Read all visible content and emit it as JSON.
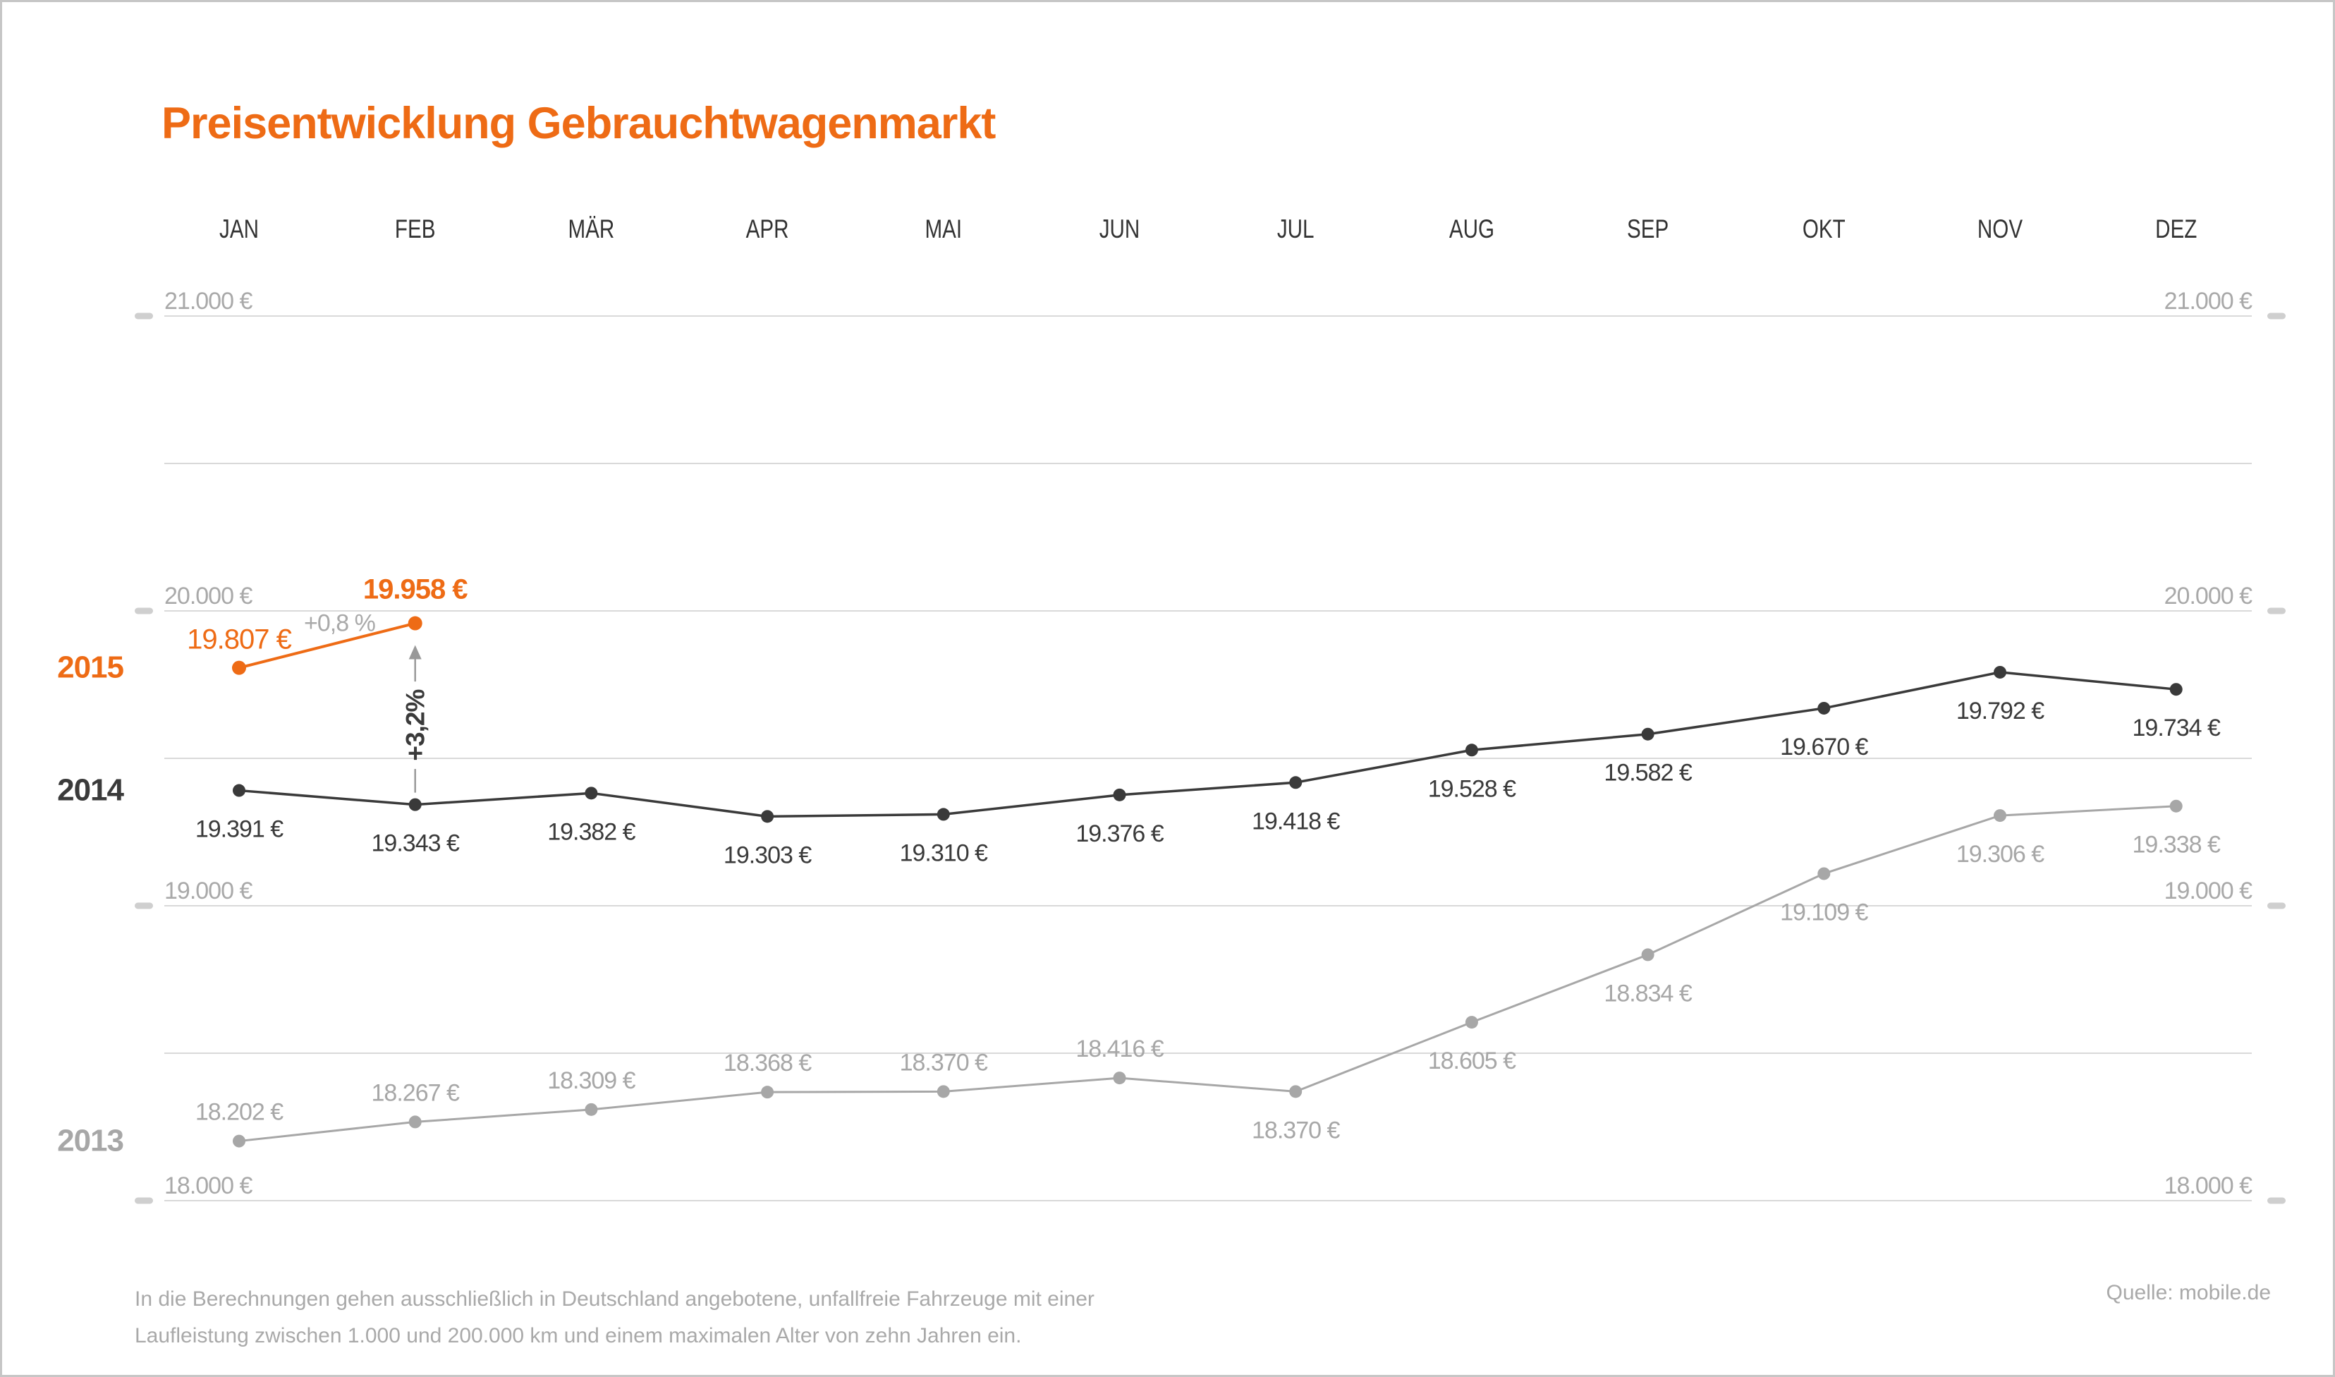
{
  "title": "Preisentwicklung Gebrauchtwagenmarkt",
  "footer": {
    "line1": "In die Berechnungen gehen ausschließlich in Deutschland angebotene, unfallfreie Fahrzeuge mit einer",
    "line2": "Laufleistung zwischen 1.000 und 200.000 km und einem maximalen Alter von zehn Jahren ein.",
    "source": "Quelle: mobile.de"
  },
  "colors": {
    "orange": "#EE6B15",
    "dark": "#3A3A3A",
    "gray": "#A7A7A7",
    "gridline": "#D9D9D9",
    "grid_label": "#A9A9A9",
    "tick": "#CFCFCF",
    "month_label": "#333333",
    "footer_text": "#A9A9A9",
    "canvas_border": "#C6C6C6",
    "annotation_arrow": "#999999"
  },
  "chart_data": {
    "type": "line",
    "title": "Preisentwicklung Gebrauchtwagenmarkt",
    "xlabel": "",
    "ylabel": "",
    "categories": [
      "JAN",
      "FEB",
      "MÄR",
      "APR",
      "MAI",
      "JUN",
      "JUL",
      "AUG",
      "SEP",
      "OKT",
      "NOV",
      "DEZ"
    ],
    "y_axis": {
      "unit": "€",
      "labeled_ticks": [
        {
          "value": 21000,
          "label": "21.000 €"
        },
        {
          "value": 20000,
          "label": "20.000 €"
        },
        {
          "value": 19000,
          "label": "19.000 €"
        },
        {
          "value": 18000,
          "label": "18.000 €"
        }
      ],
      "minor_gridline_values": [
        20500,
        19500,
        18500
      ],
      "gridline_step": 500,
      "ylim": [
        18000,
        21000
      ],
      "grid": true,
      "labels_both_sides": true
    },
    "legend_position": "left-of-series-start",
    "series": [
      {
        "name": "2013",
        "color_key": "gray",
        "points": [
          {
            "month": "JAN",
            "value": 18202,
            "label": "18.202 €",
            "label_pos": "above"
          },
          {
            "month": "FEB",
            "value": 18267,
            "label": "18.267 €",
            "label_pos": "above"
          },
          {
            "month": "MÄR",
            "value": 18309,
            "label": "18.309 €",
            "label_pos": "above"
          },
          {
            "month": "APR",
            "value": 18368,
            "label": "18.368 €",
            "label_pos": "above"
          },
          {
            "month": "MAI",
            "value": 18370,
            "label": "18.370 €",
            "label_pos": "above"
          },
          {
            "month": "JUN",
            "value": 18416,
            "label": "18.416 €",
            "label_pos": "above"
          },
          {
            "month": "JUL",
            "value": 18370,
            "label": "18.370 €",
            "label_pos": "below"
          },
          {
            "month": "AUG",
            "value": 18605,
            "label": "18.605 €",
            "label_pos": "below"
          },
          {
            "month": "SEP",
            "value": 18834,
            "label": "18.834 €",
            "label_pos": "below"
          },
          {
            "month": "OKT",
            "value": 19109,
            "label": "19.109 €",
            "label_pos": "below"
          },
          {
            "month": "NOV",
            "value": 19306,
            "label": "19.306 €",
            "label_pos": "below"
          },
          {
            "month": "DEZ",
            "value": 19338,
            "label": "19.338 €",
            "label_pos": "below"
          }
        ]
      },
      {
        "name": "2014",
        "color_key": "dark",
        "points": [
          {
            "month": "JAN",
            "value": 19391,
            "label": "19.391 €",
            "label_pos": "below"
          },
          {
            "month": "FEB",
            "value": 19343,
            "label": "19.343 €",
            "label_pos": "below"
          },
          {
            "month": "MÄR",
            "value": 19382,
            "label": "19.382 €",
            "label_pos": "below"
          },
          {
            "month": "APR",
            "value": 19303,
            "label": "19.303 €",
            "label_pos": "below"
          },
          {
            "month": "MAI",
            "value": 19310,
            "label": "19.310 €",
            "label_pos": "below"
          },
          {
            "month": "JUN",
            "value": 19376,
            "label": "19.376 €",
            "label_pos": "below"
          },
          {
            "month": "JUL",
            "value": 19418,
            "label": "19.418 €",
            "label_pos": "below"
          },
          {
            "month": "AUG",
            "value": 19528,
            "label": "19.528 €",
            "label_pos": "below"
          },
          {
            "month": "SEP",
            "value": 19582,
            "label": "19.582 €",
            "label_pos": "below"
          },
          {
            "month": "OKT",
            "value": 19670,
            "label": "19.670 €",
            "label_pos": "below"
          },
          {
            "month": "NOV",
            "value": 19792,
            "label": "19.792 €",
            "label_pos": "below"
          },
          {
            "month": "DEZ",
            "value": 19734,
            "label": "19.734 €",
            "label_pos": "below"
          }
        ]
      },
      {
        "name": "2015",
        "color_key": "orange",
        "change_label": "+0,8 %",
        "points": [
          {
            "month": "JAN",
            "value": 19807,
            "label": "19.807 €",
            "label_pos": "above"
          },
          {
            "month": "FEB",
            "value": 19958,
            "label": "19.958 €",
            "label_pos": "above",
            "bold": true
          }
        ]
      }
    ],
    "annotation": {
      "label": "+3,2%",
      "month": "FEB",
      "from_series": "2014",
      "to_series": "2015"
    }
  }
}
